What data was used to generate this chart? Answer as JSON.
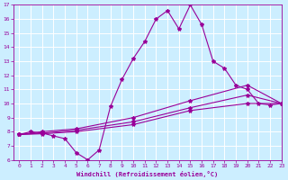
{
  "xlabel": "Windchill (Refroidissement éolien,°C)",
  "xlim": [
    -0.5,
    23
  ],
  "ylim": [
    6,
    17
  ],
  "xticks": [
    0,
    1,
    2,
    3,
    4,
    5,
    6,
    7,
    8,
    9,
    10,
    11,
    12,
    13,
    14,
    15,
    16,
    17,
    18,
    19,
    20,
    21,
    22,
    23
  ],
  "yticks": [
    6,
    7,
    8,
    9,
    10,
    11,
    12,
    13,
    14,
    15,
    16,
    17
  ],
  "background_color": "#cceeff",
  "grid_color": "#ffffff",
  "line_color": "#990099",
  "line1_x": [
    0,
    1,
    2,
    3,
    4,
    5,
    6,
    7,
    8,
    9,
    10,
    11,
    12,
    13,
    14,
    15,
    16,
    17,
    18,
    19,
    20,
    21,
    22,
    23
  ],
  "line1_y": [
    7.8,
    8.0,
    7.9,
    7.7,
    7.5,
    6.5,
    6.0,
    6.7,
    9.8,
    11.7,
    13.2,
    14.4,
    16.0,
    16.6,
    15.3,
    17.0,
    15.6,
    13.0,
    12.5,
    11.3,
    11.0,
    10.0,
    9.9,
    10.0
  ],
  "line2_x": [
    0,
    2,
    5,
    10,
    15,
    20,
    23
  ],
  "line2_y": [
    7.8,
    8.0,
    8.2,
    9.0,
    10.2,
    11.3,
    10.0
  ],
  "line3_x": [
    0,
    2,
    5,
    10,
    15,
    20,
    23
  ],
  "line3_y": [
    7.8,
    7.9,
    8.1,
    8.7,
    9.7,
    10.6,
    10.0
  ],
  "line4_x": [
    0,
    2,
    5,
    10,
    15,
    20,
    23
  ],
  "line4_y": [
    7.8,
    7.85,
    8.0,
    8.5,
    9.5,
    10.0,
    10.0
  ]
}
